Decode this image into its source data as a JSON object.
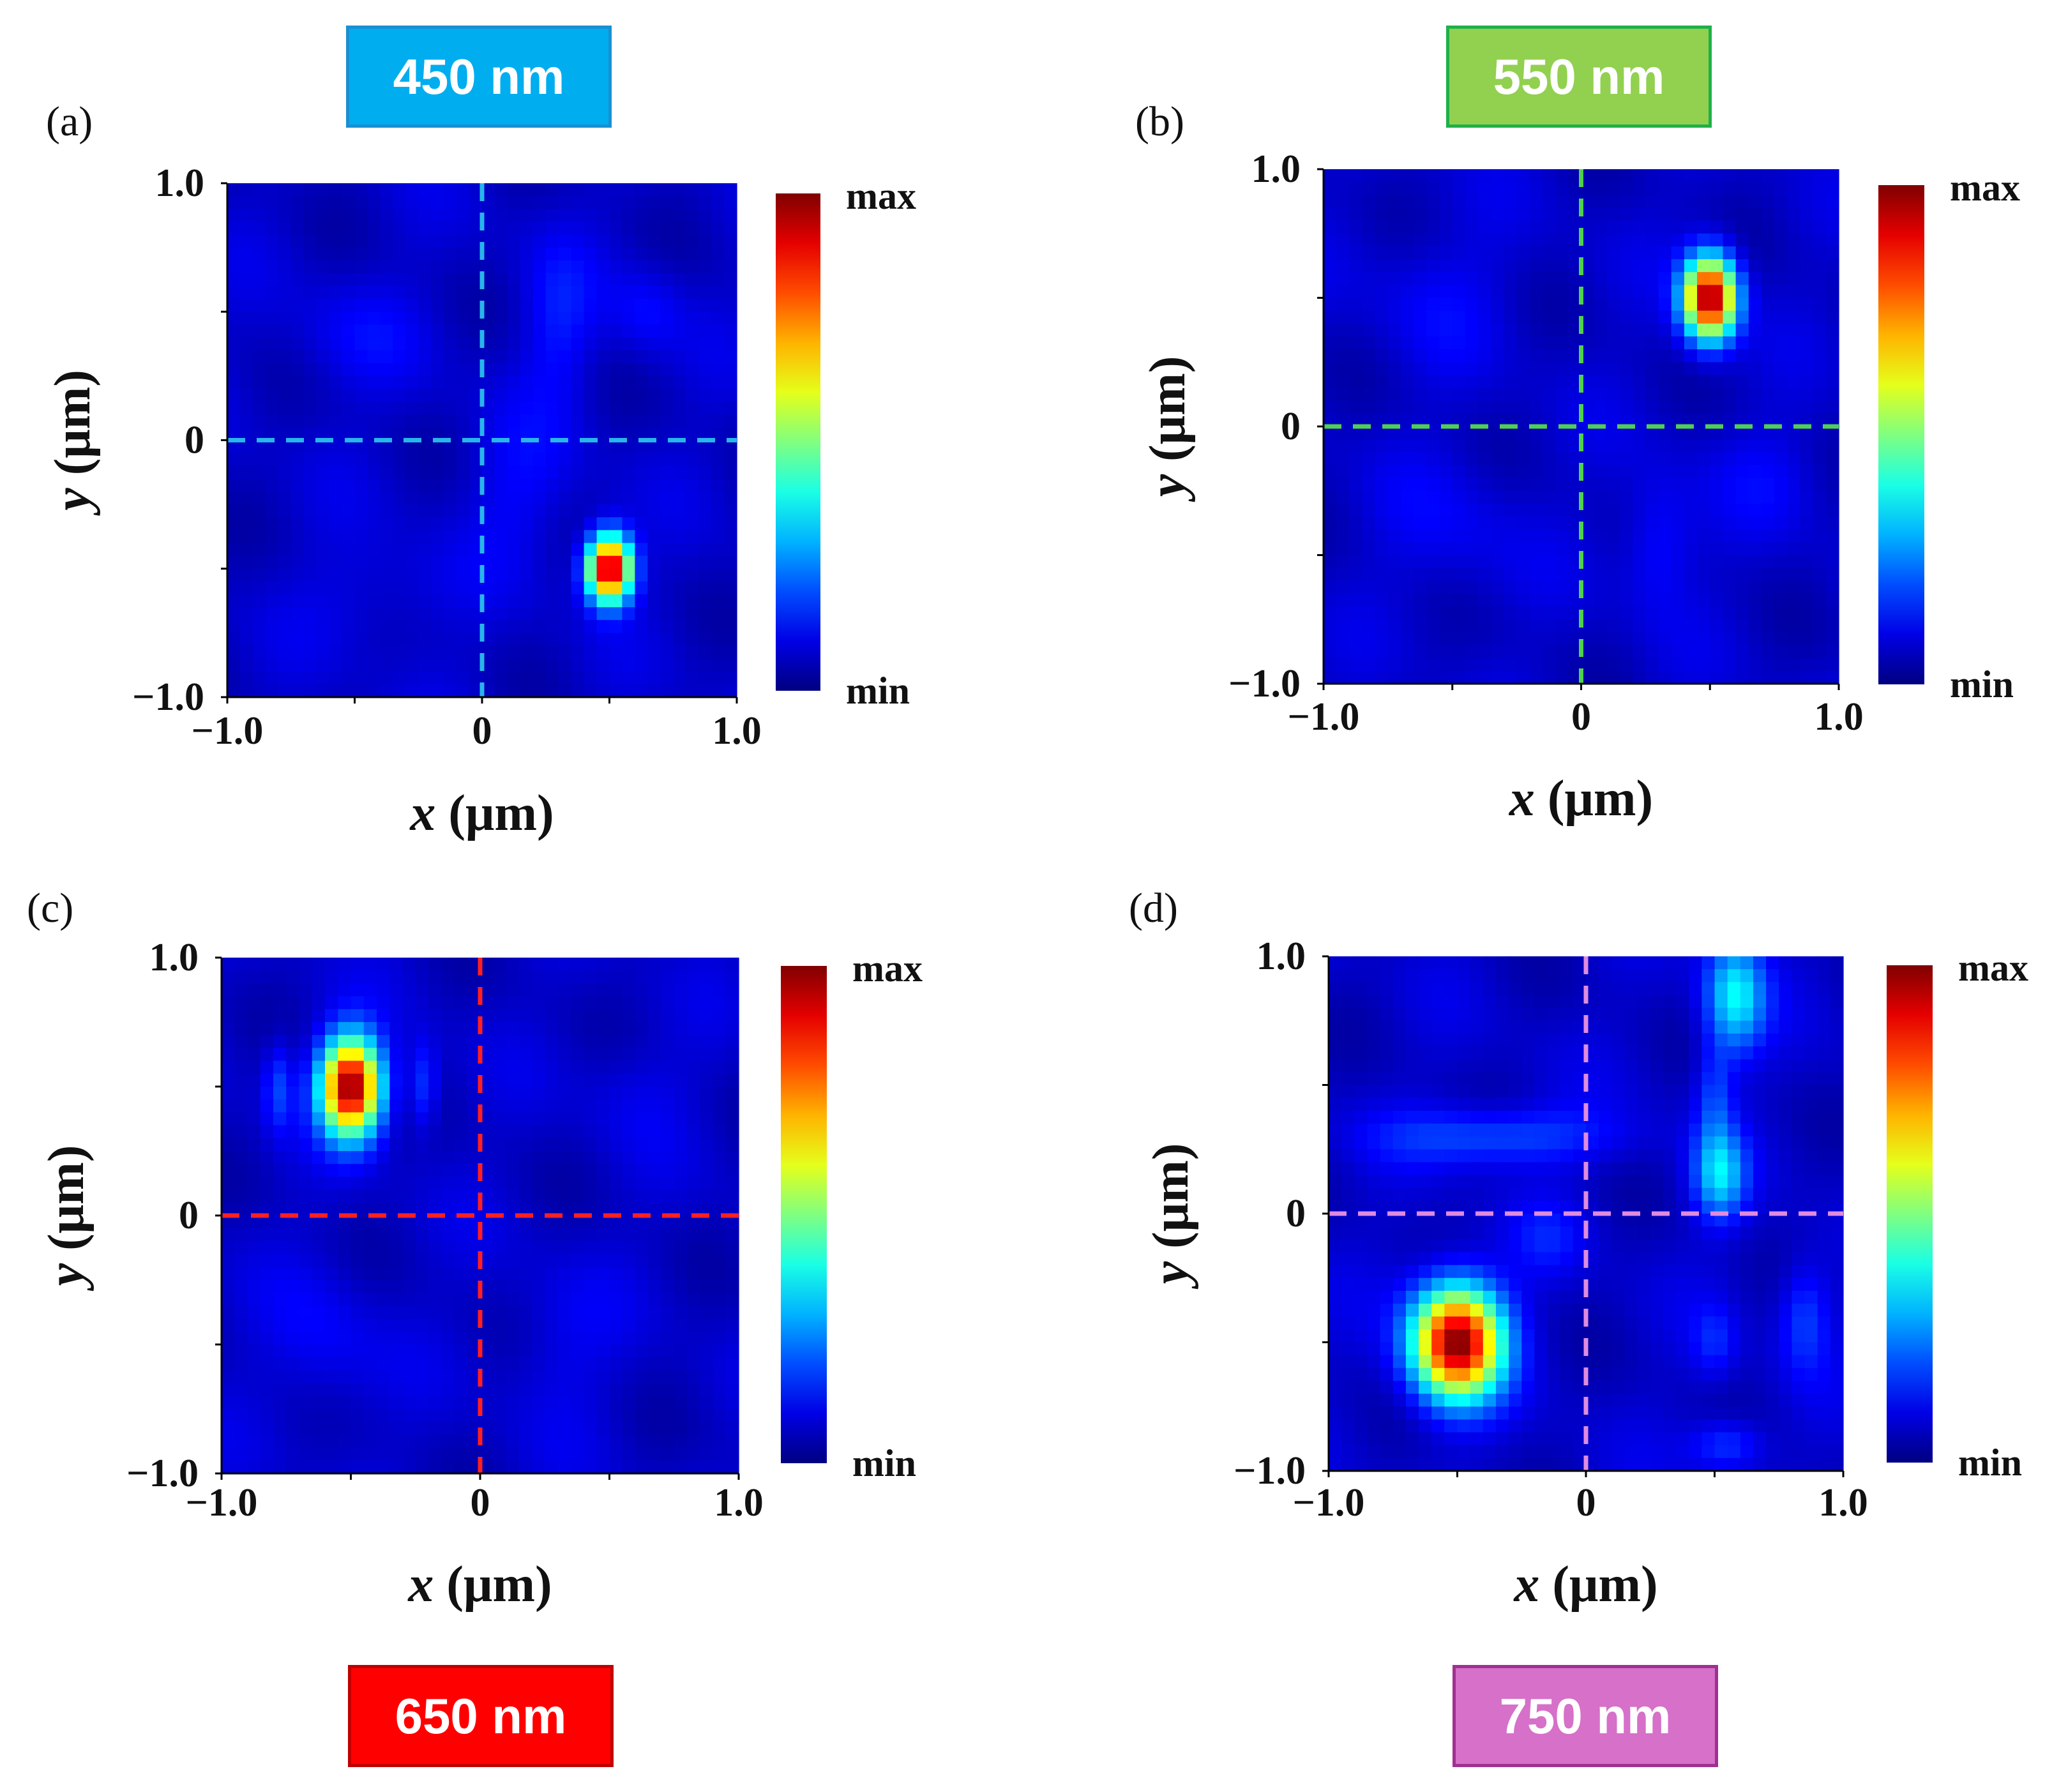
{
  "chart_data": [
    {
      "type": "heatmap",
      "panel_label": "(a)",
      "wavelength_label": "450 nm",
      "badge_fill": "#00adef",
      "badge_border": "#1a8fd0",
      "line_color": "#29b5ea",
      "xlabel_var": "x",
      "ylabel_var": "y",
      "unit": "(μm)",
      "x_range": [
        -1.0,
        1.0
      ],
      "y_range": [
        -1.0,
        1.0
      ],
      "x_ticks": [
        {
          "value": -1.0,
          "label": "−1.0"
        },
        {
          "value": 0,
          "label": "0"
        },
        {
          "value": 1.0,
          "label": "1.0"
        }
      ],
      "y_ticks": [
        {
          "value": -1.0,
          "label": "−1.0"
        },
        {
          "value": 0,
          "label": "0"
        },
        {
          "value": 1.0,
          "label": "1.0"
        }
      ],
      "colorbar": {
        "max_label": "max",
        "min_label": "min"
      },
      "peak": {
        "x": 0.5,
        "y": -0.5,
        "sigma_x": 0.06,
        "sigma_y": 0.09
      },
      "crosshair": {
        "x": 0,
        "y": 0
      },
      "background": [
        {
          "x": 0.3,
          "y": 0.45,
          "sx": 0.1,
          "sy": 0.22,
          "a": 0.07
        },
        {
          "x": 0.65,
          "y": 0.5,
          "sx": 0.1,
          "sy": 0.12,
          "a": 0.06
        },
        {
          "x": -0.5,
          "y": 0.4,
          "sx": 0.2,
          "sy": 0.15,
          "a": 0.04
        },
        {
          "x": 0.15,
          "y": -0.2,
          "sx": 0.15,
          "sy": 0.2,
          "a": 0.05
        },
        {
          "x": -0.4,
          "y": -0.6,
          "sx": 0.2,
          "sy": 0.15,
          "a": 0.04
        }
      ]
    },
    {
      "type": "heatmap",
      "panel_label": "(b)",
      "wavelength_label": "550 nm",
      "badge_fill": "#92d050",
      "badge_border": "#1fb04a",
      "line_color": "#4fd14f",
      "xlabel_var": "x",
      "ylabel_var": "y",
      "unit": "(μm)",
      "x_range": [
        -1.0,
        1.0
      ],
      "y_range": [
        -1.0,
        1.0
      ],
      "x_ticks": [
        {
          "value": -1.0,
          "label": "−1.0"
        },
        {
          "value": 0,
          "label": "0"
        },
        {
          "value": 1.0,
          "label": "1.0"
        }
      ],
      "y_ticks": [
        {
          "value": -1.0,
          "label": "−1.0"
        },
        {
          "value": 0,
          "label": "0"
        },
        {
          "value": 1.0,
          "label": "1.0"
        }
      ],
      "colorbar": {
        "max_label": "max",
        "min_label": "min"
      },
      "peak": {
        "x": 0.5,
        "y": 0.5,
        "sigma_x": 0.07,
        "sigma_y": 0.11
      },
      "crosshair": {
        "x": 0,
        "y": 0
      },
      "background": [
        {
          "x": 0.3,
          "y": -0.45,
          "sx": 0.1,
          "sy": 0.18,
          "a": 0.08
        },
        {
          "x": -0.55,
          "y": 0.5,
          "sx": 0.2,
          "sy": 0.2,
          "a": 0.04
        },
        {
          "x": -0.5,
          "y": -0.4,
          "sx": 0.2,
          "sy": 0.2,
          "a": 0.04
        },
        {
          "x": 0.75,
          "y": -0.2,
          "sx": 0.15,
          "sy": 0.15,
          "a": 0.04
        }
      ]
    },
    {
      "type": "heatmap",
      "panel_label": "(c)",
      "wavelength_label": "650 nm",
      "badge_fill": "#ff0000",
      "badge_border": "#c00000",
      "line_color": "#ff2020",
      "xlabel_var": "x",
      "ylabel_var": "y",
      "unit": "(μm)",
      "x_range": [
        -1.0,
        1.0
      ],
      "y_range": [
        -1.0,
        1.0
      ],
      "x_ticks": [
        {
          "value": -1.0,
          "label": "−1.0"
        },
        {
          "value": 0,
          "label": "0"
        },
        {
          "value": 1.0,
          "label": "1.0"
        }
      ],
      "y_ticks": [
        {
          "value": -1.0,
          "label": "−1.0"
        },
        {
          "value": 0,
          "label": "0"
        },
        {
          "value": 1.0,
          "label": "1.0"
        }
      ],
      "colorbar": {
        "max_label": "max",
        "min_label": "min"
      },
      "peak": {
        "x": -0.5,
        "y": 0.5,
        "sigma_x": 0.08,
        "sigma_y": 0.13
      },
      "crosshair": {
        "x": 0,
        "y": 0
      },
      "background": [
        {
          "x": -0.78,
          "y": 0.5,
          "sx": 0.04,
          "sy": 0.12,
          "a": 0.12
        },
        {
          "x": -0.22,
          "y": 0.5,
          "sx": 0.04,
          "sy": 0.12,
          "a": 0.12
        },
        {
          "x": -0.6,
          "y": -0.5,
          "sx": 0.15,
          "sy": 0.2,
          "a": 0.05
        },
        {
          "x": 0.3,
          "y": -0.5,
          "sx": 0.15,
          "sy": 0.2,
          "a": 0.04
        },
        {
          "x": 0.6,
          "y": 0.5,
          "sx": 0.15,
          "sy": 0.15,
          "a": 0.03
        }
      ]
    },
    {
      "type": "heatmap",
      "panel_label": "(d)",
      "wavelength_label": "750 nm",
      "badge_fill": "#d670c9",
      "badge_border": "#a0308f",
      "line_color": "#e08be0",
      "xlabel_var": "x",
      "ylabel_var": "y",
      "unit": "(μm)",
      "x_range": [
        -1.0,
        1.0
      ],
      "y_range": [
        -1.0,
        1.0
      ],
      "x_ticks": [
        {
          "value": -1.0,
          "label": "−1.0"
        },
        {
          "value": 0,
          "label": "0"
        },
        {
          "value": 1.0,
          "label": "1.0"
        }
      ],
      "y_ticks": [
        {
          "value": -1.0,
          "label": "−1.0"
        },
        {
          "value": 0,
          "label": "0"
        },
        {
          "value": 1.0,
          "label": "1.0"
        }
      ],
      "colorbar": {
        "max_label": "max",
        "min_label": "min"
      },
      "peak": {
        "x": -0.5,
        "y": -0.5,
        "sigma_x": 0.12,
        "sigma_y": 0.15
      },
      "crosshair": {
        "x": 0,
        "y": 0
      },
      "background": [
        {
          "x": 0.58,
          "y": 0.85,
          "sx": 0.08,
          "sy": 0.15,
          "a": 0.3
        },
        {
          "x": 0.52,
          "y": 0.15,
          "sx": 0.07,
          "sy": 0.12,
          "a": 0.26
        },
        {
          "x": 0.5,
          "y": 0.45,
          "sx": 0.05,
          "sy": 0.15,
          "a": 0.12
        },
        {
          "x": -0.35,
          "y": 0.3,
          "sx": 0.3,
          "sy": 0.08,
          "a": 0.14
        },
        {
          "x": 0.85,
          "y": -0.4,
          "sx": 0.07,
          "sy": 0.15,
          "a": 0.12
        },
        {
          "x": 0.55,
          "y": -0.9,
          "sx": 0.1,
          "sy": 0.07,
          "a": 0.12
        },
        {
          "x": 0.5,
          "y": -0.5,
          "sx": 0.06,
          "sy": 0.1,
          "a": 0.08
        },
        {
          "x": -0.15,
          "y": -0.1,
          "sx": 0.1,
          "sy": 0.1,
          "a": 0.06
        }
      ]
    }
  ]
}
